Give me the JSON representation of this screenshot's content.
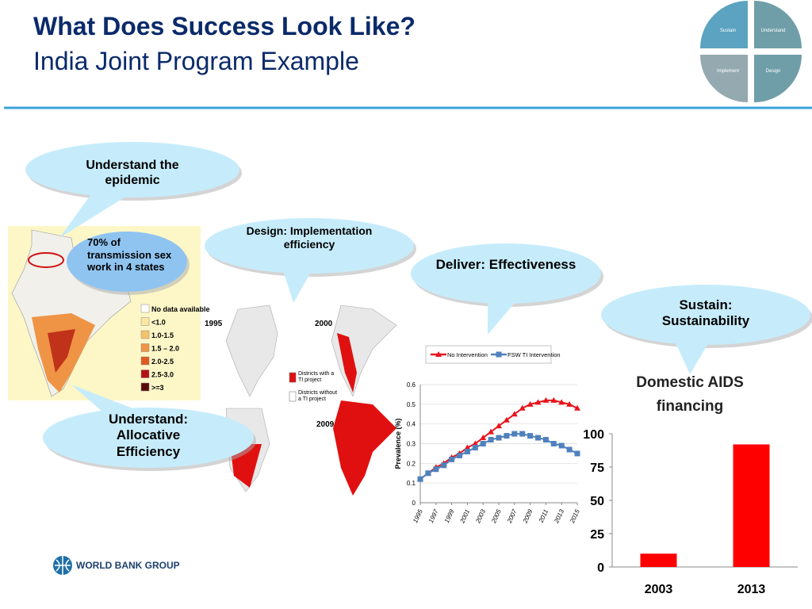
{
  "header": {
    "title": "What Does Success Look Like?",
    "subtitle": "India Joint Program Example"
  },
  "quadrant": {
    "labels": [
      "Sustain",
      "Understand",
      "Implement",
      "Design"
    ]
  },
  "callouts": [
    {
      "text": "Understand the epidemic"
    },
    {
      "text": "70% of transmission sex work in 4 states"
    },
    {
      "text": "Design: Implementation efficiency"
    },
    {
      "text": "Deliver: Effectiveness"
    },
    {
      "text": "Sustain: Sustainability"
    },
    {
      "text": "Understand: Allocative Efficiency"
    }
  ],
  "map": {
    "legend": [
      {
        "label": "No data available",
        "color": "#ffffff"
      },
      {
        "label": "<1.0",
        "color": "#fbe7a0"
      },
      {
        "label": "1.0-1.5",
        "color": "#f6c36a"
      },
      {
        "label": "1.5 – 2.0",
        "color": "#ef9445"
      },
      {
        "label": "2.0-2.5",
        "color": "#e05a20"
      },
      {
        "label": "2.5-3.0",
        "color": "#b41212"
      },
      {
        "label": ">=3",
        "color": "#5a0a0a"
      }
    ],
    "years": [
      "1995",
      "2000",
      "2009"
    ],
    "ti_legend": [
      {
        "label": "Districts with a TI project",
        "color": "#e01010"
      },
      {
        "label": "Districts without a TI project",
        "color": "#ffffff"
      }
    ]
  },
  "footer": {
    "logo": "WORLD BANK GROUP"
  },
  "chart_data": [
    {
      "type": "line",
      "ylabel": "Prevalence (%)",
      "x": [
        1995,
        1996,
        1997,
        1998,
        1999,
        2000,
        2001,
        2002,
        2003,
        2004,
        2005,
        2006,
        2007,
        2008,
        2009,
        2010,
        2011,
        2012,
        2013,
        2014,
        2015
      ],
      "xlim": [
        1995,
        2015
      ],
      "xticks": [
        1995,
        1997,
        1999,
        2001,
        2003,
        2005,
        2007,
        2009,
        2011,
        2013,
        2015
      ],
      "ylim": [
        0,
        0.6
      ],
      "yticks": [
        0,
        0.1,
        0.2,
        0.3,
        0.4,
        0.5,
        0.6
      ],
      "grid": true,
      "series": [
        {
          "name": "No Intervention",
          "color": "#e8141c",
          "marker": "triangle",
          "values": [
            0.12,
            0.15,
            0.18,
            0.2,
            0.23,
            0.25,
            0.28,
            0.3,
            0.33,
            0.36,
            0.39,
            0.42,
            0.45,
            0.48,
            0.5,
            0.51,
            0.52,
            0.52,
            0.51,
            0.5,
            0.48
          ]
        },
        {
          "name": "FSW TI Intervention",
          "color": "#4f81bd",
          "marker": "square",
          "values": [
            0.12,
            0.15,
            0.17,
            0.19,
            0.22,
            0.24,
            0.26,
            0.28,
            0.3,
            0.32,
            0.33,
            0.34,
            0.35,
            0.35,
            0.34,
            0.33,
            0.32,
            0.3,
            0.29,
            0.27,
            0.25
          ]
        }
      ]
    },
    {
      "type": "bar",
      "title": "Domestic AIDS financing",
      "categories": [
        "2003",
        "2013"
      ],
      "values": [
        10,
        92
      ],
      "color": "#ff0000",
      "ylim": [
        0,
        100
      ],
      "yticks": [
        0,
        25,
        50,
        75,
        100
      ]
    }
  ]
}
